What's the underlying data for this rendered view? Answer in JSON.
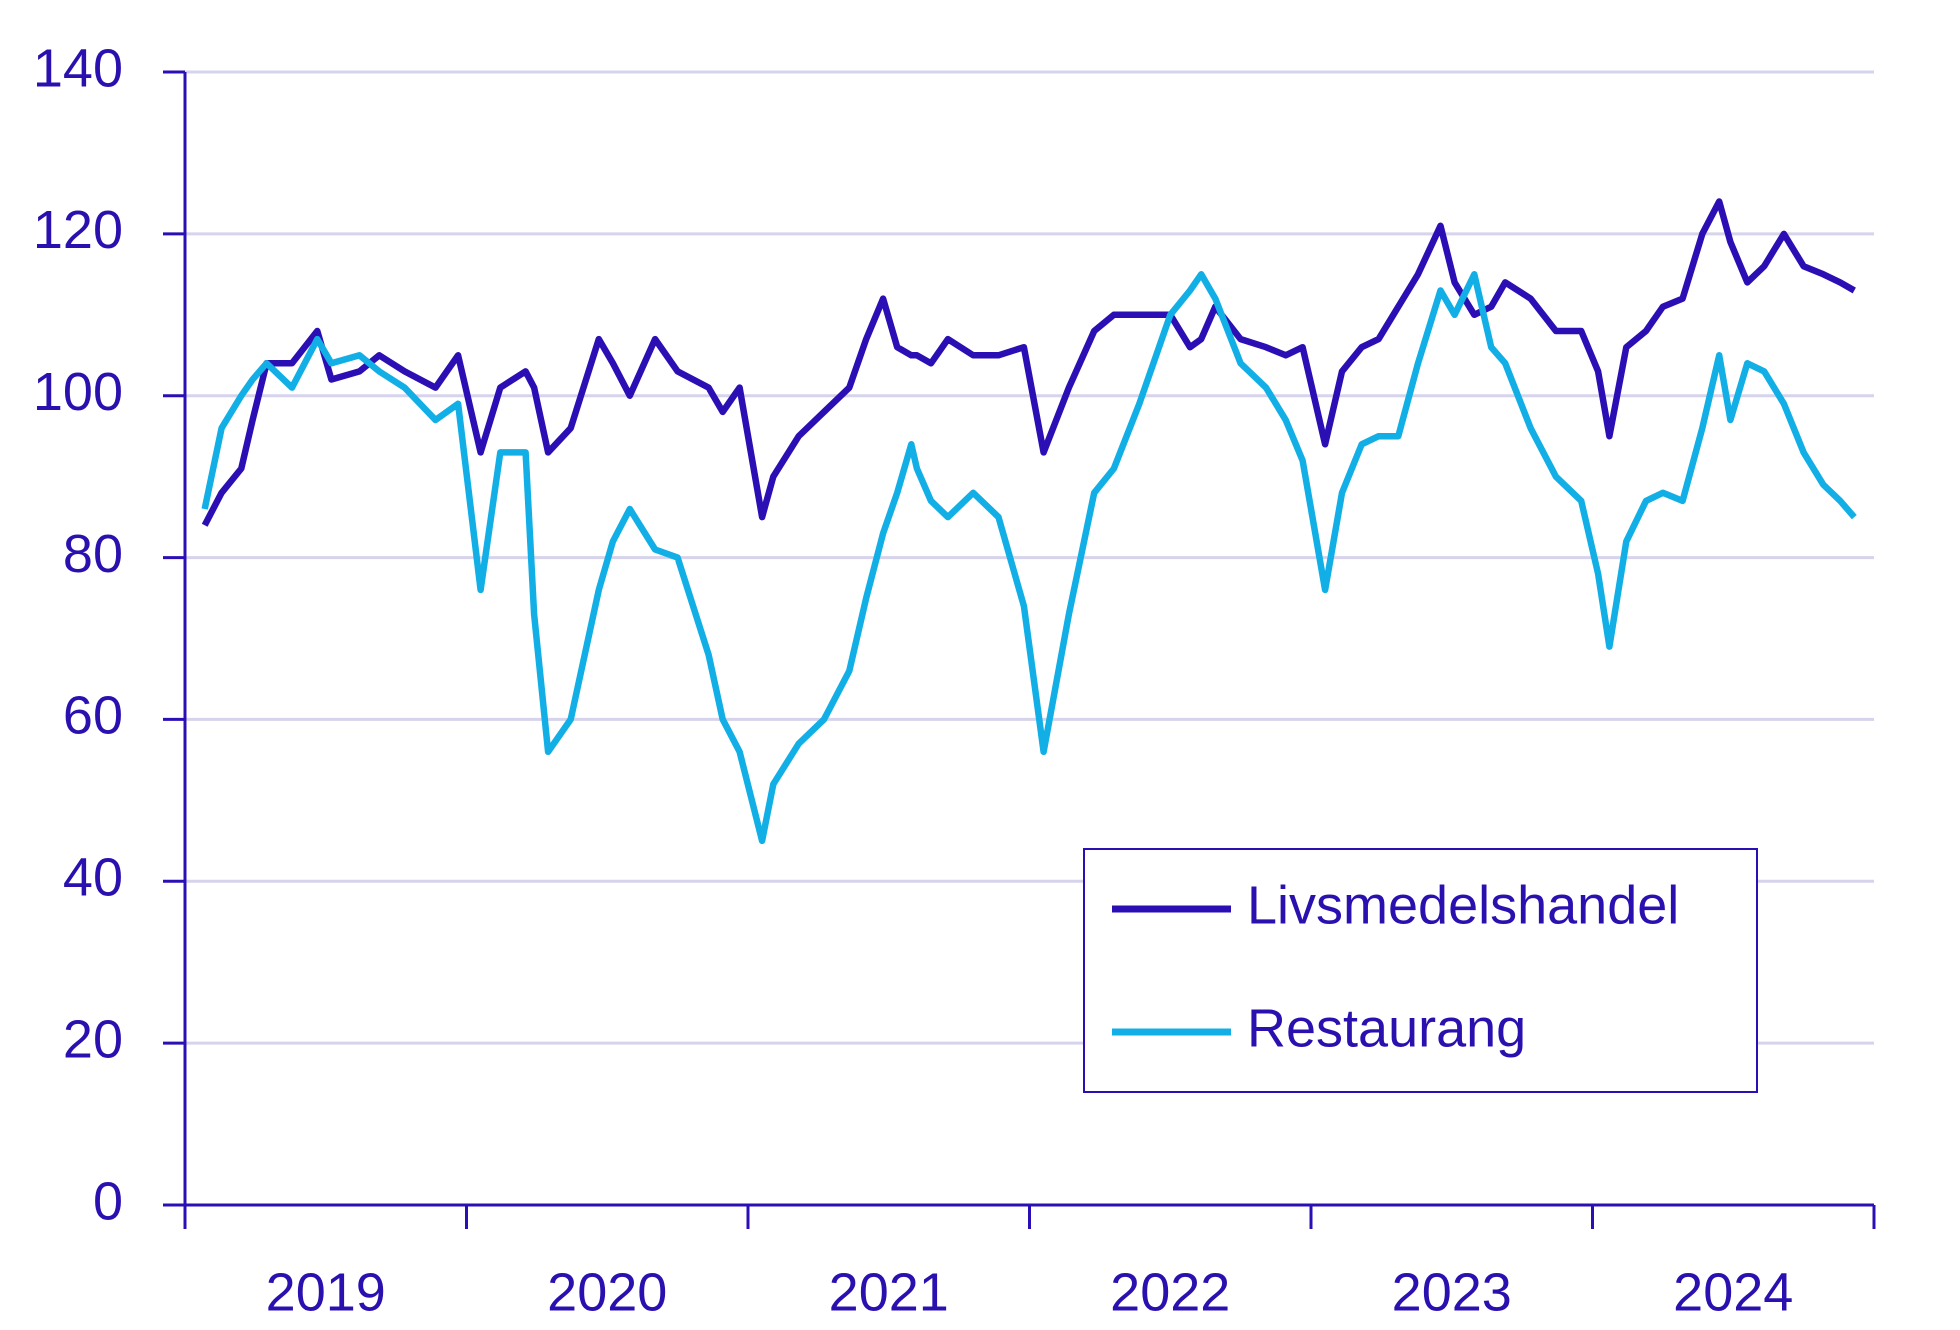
{
  "chart_data": {
    "type": "line",
    "categories": [
      "2019",
      "2020",
      "2021",
      "2022",
      "2023",
      "2024"
    ],
    "xlim": [
      2019,
      2025
    ],
    "xticks": [
      2019,
      2020,
      2021,
      2022,
      2023,
      2024,
      2025
    ],
    "ylim": [
      0,
      140
    ],
    "yticks": [
      0,
      20,
      40,
      60,
      80,
      100,
      120,
      140
    ],
    "grid": true,
    "legend": "lower right",
    "x": [
      2019.07,
      2019.13,
      2019.2,
      2019.24,
      2019.29,
      2019.38,
      2019.47,
      2019.52,
      2019.62,
      2019.69,
      2019.78,
      2019.89,
      2019.97,
      2020.05,
      2020.12,
      2020.21,
      2020.24,
      2020.29,
      2020.37,
      2020.47,
      2020.52,
      2020.58,
      2020.67,
      2020.75,
      2020.86,
      2020.91,
      2020.97,
      2021.05,
      2021.09,
      2021.18,
      2021.27,
      2021.36,
      2021.42,
      2021.48,
      2021.53,
      2021.58,
      2021.6,
      2021.65,
      2021.71,
      2021.8,
      2021.89,
      2021.98,
      2022.05,
      2022.14,
      2022.23,
      2022.3,
      2022.39,
      2022.5,
      2022.57,
      2022.61,
      2022.66,
      2022.75,
      2022.84,
      2022.91,
      2022.97,
      2023.05,
      2023.11,
      2023.18,
      2023.24,
      2023.31,
      2023.38,
      2023.46,
      2023.51,
      2023.58,
      2023.64,
      2023.69,
      2023.78,
      2023.87,
      2023.96,
      2024.02,
      2024.06,
      2024.12,
      2024.19,
      2024.25,
      2024.32,
      2024.39,
      2024.45,
      2024.49,
      2024.55,
      2024.61,
      2024.68,
      2024.75,
      2024.82,
      2024.88,
      2024.93
    ],
    "series": [
      {
        "name": "Livsmedelshandel",
        "color": "#2c0fb4",
        "values": [
          84,
          88,
          91,
          97,
          104,
          104,
          108,
          102,
          103,
          105,
          103,
          101,
          105,
          93,
          101,
          103,
          101,
          93,
          96,
          107,
          104,
          100,
          107,
          103,
          101,
          98,
          101,
          85,
          90,
          95,
          98,
          101,
          107,
          112,
          106,
          105,
          105,
          104,
          107,
          105,
          105,
          106,
          93,
          101,
          108,
          110,
          110,
          110,
          106,
          107,
          111,
          107,
          106,
          105,
          106,
          94,
          103,
          106,
          107,
          111,
          115,
          121,
          114,
          110,
          111,
          114,
          112,
          108,
          108,
          103,
          95,
          106,
          108,
          111,
          112,
          120,
          124,
          119,
          114,
          116,
          120,
          116,
          115,
          114,
          113
        ]
      },
      {
        "name": "Restaurang",
        "color": "#12afe6",
        "values": [
          86,
          96,
          100,
          102,
          104,
          101,
          107,
          104,
          105,
          103,
          101,
          97,
          99,
          76,
          93,
          93,
          73,
          56,
          60,
          76,
          82,
          86,
          81,
          80,
          68,
          60,
          56,
          45,
          52,
          57,
          60,
          66,
          75,
          83,
          88,
          94,
          91,
          87,
          85,
          88,
          85,
          74,
          56,
          73,
          88,
          91,
          99,
          110,
          113,
          115,
          112,
          104,
          101,
          97,
          92,
          76,
          88,
          94,
          95,
          95,
          104,
          113,
          110,
          115,
          106,
          104,
          96,
          90,
          87,
          78,
          69,
          82,
          87,
          88,
          87,
          96,
          105,
          97,
          104,
          103,
          99,
          93,
          89,
          87,
          85
        ]
      }
    ]
  }
}
